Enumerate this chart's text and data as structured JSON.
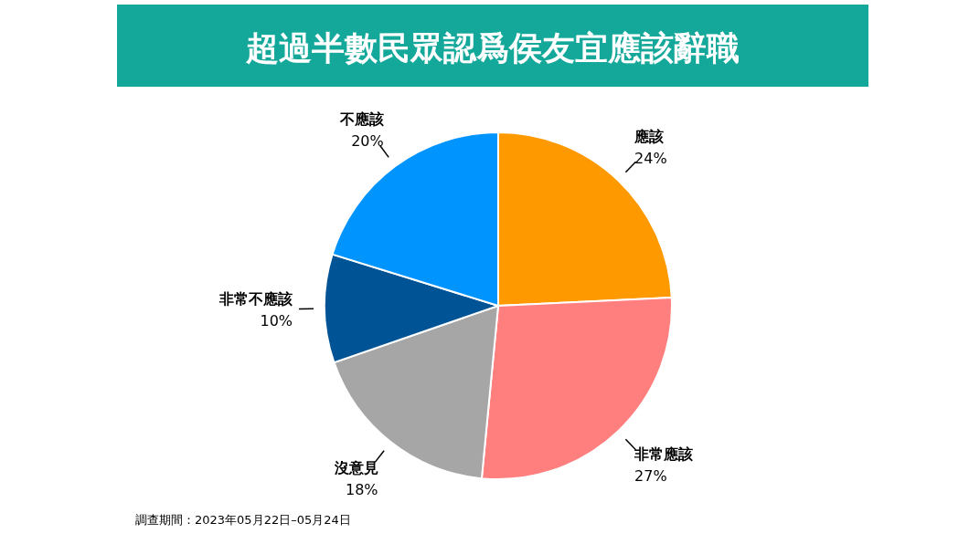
{
  "chart_data": {
    "type": "pie",
    "title": "超過半數民眾認爲侯友宜應該辭職",
    "categories": [
      "應該",
      "非常應該",
      "沒意見",
      "非常不應該",
      "不應該"
    ],
    "values": [
      24,
      27,
      18,
      10,
      20
    ],
    "value_labels": [
      "24%",
      "27%",
      "18%",
      "10%",
      "20%"
    ],
    "colors": [
      "#ff9900",
      "#ff7f7f",
      "#a6a6a6",
      "#005496",
      "#0094ff"
    ],
    "annotations": [
      "調查期間：2023年05月22日–05月24日"
    ]
  }
}
